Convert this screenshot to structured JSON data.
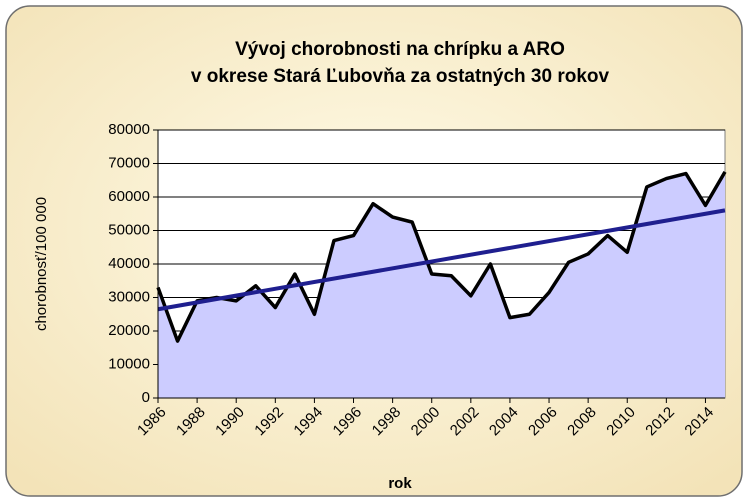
{
  "chart_data": {
    "type": "area",
    "title": "Vývoj chorobnosti na chrípku a ARO",
    "subtitle": "v okrese Stará Ľubovňa za ostatných 30 rokov",
    "xlabel": "rok",
    "ylabel": "chorobnosť/100 000",
    "x": [
      1986,
      1987,
      1988,
      1989,
      1990,
      1991,
      1992,
      1993,
      1994,
      1995,
      1996,
      1997,
      1998,
      1999,
      2000,
      2001,
      2002,
      2003,
      2004,
      2005,
      2006,
      2007,
      2008,
      2009,
      2010,
      2011,
      2012,
      2013,
      2014,
      2015
    ],
    "values": [
      33000,
      17000,
      29000,
      30000,
      29000,
      33500,
      27000,
      37000,
      25000,
      47000,
      48500,
      58000,
      54000,
      52500,
      37000,
      36500,
      30500,
      40000,
      24000,
      25000,
      31500,
      40500,
      43000,
      48500,
      43500,
      63000,
      65500,
      67000,
      57500,
      67500
    ],
    "color": "#ccccff",
    "line_color": "#000000",
    "trendline": {
      "start": 26500,
      "end": 56000,
      "color": "#1f1f8f"
    },
    "xlim": [
      1986,
      2015
    ],
    "xticks": [
      1986,
      1988,
      1990,
      1992,
      1994,
      1996,
      1998,
      2000,
      2002,
      2004,
      2006,
      2008,
      2010,
      2012,
      2014
    ],
    "ylim": [
      0,
      80000
    ],
    "yticks": [
      0,
      10000,
      20000,
      30000,
      40000,
      50000,
      60000,
      70000,
      80000
    ],
    "grid": true
  }
}
